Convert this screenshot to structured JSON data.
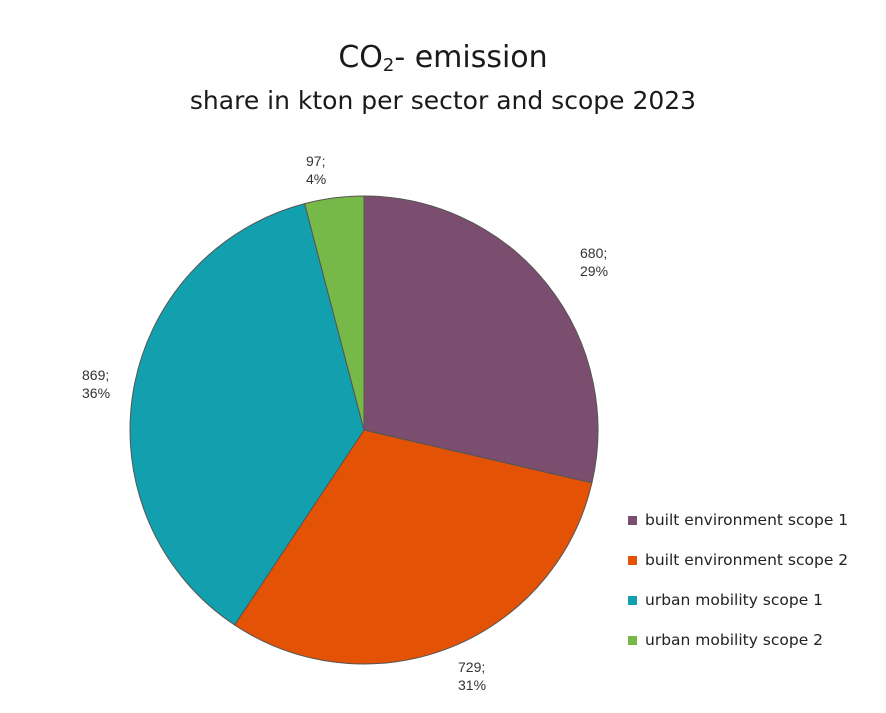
{
  "chart_data": {
    "type": "pie",
    "title_main": "CO",
    "title_sub_script": "2",
    "title_rest": "- emission",
    "subtitle": "share in kton per sector and scope 2023",
    "slices": [
      {
        "name": "built environment scope 1",
        "value": 680,
        "value_label": "680;",
        "percent_label": "29%",
        "color": "#7b4d6e"
      },
      {
        "name": "built environment scope 2",
        "value": 729,
        "value_label": "729;",
        "percent_label": "31%",
        "color": "#e35205"
      },
      {
        "name": "urban mobility scope 1",
        "value": 869,
        "value_label": "869;",
        "percent_label": "36%",
        "color": "#12a0ae"
      },
      {
        "name": "urban mobility scope 2",
        "value": 97,
        "value_label": "97;",
        "percent_label": "4%",
        "color": "#77b948"
      }
    ],
    "legend_position": "bottom-right"
  }
}
